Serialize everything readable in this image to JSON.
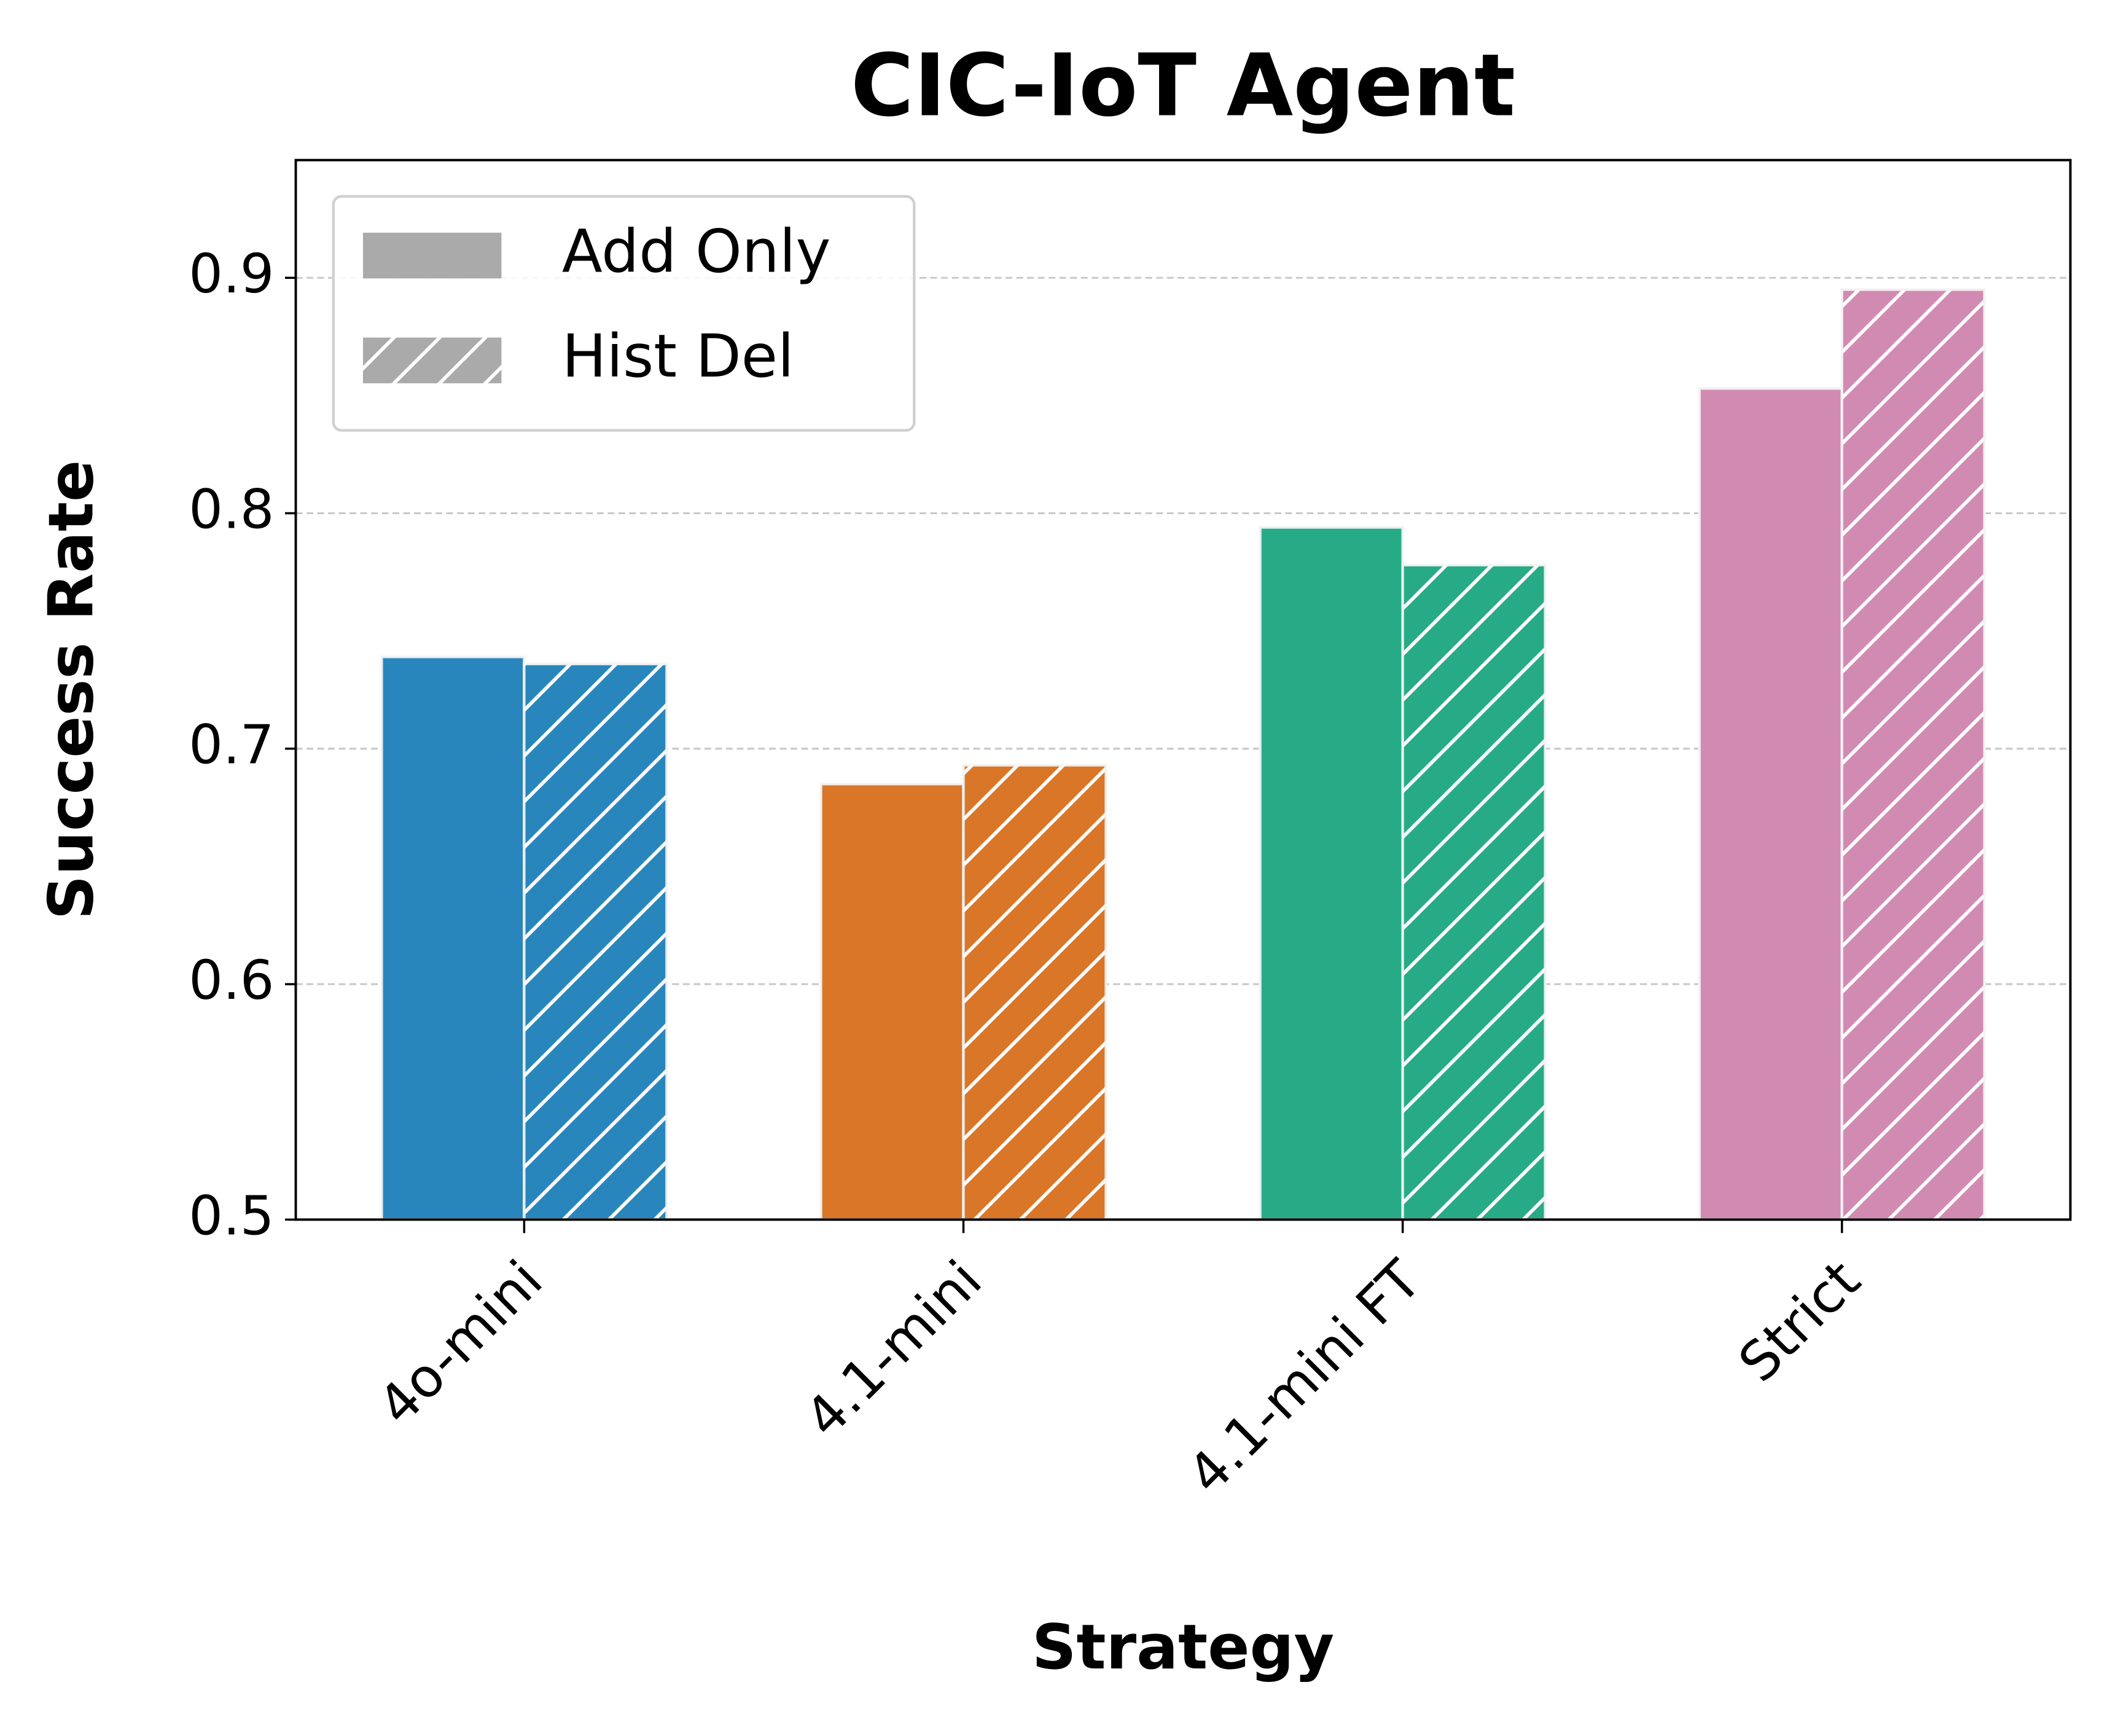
{
  "chart_data": {
    "type": "bar",
    "title": "CIC-IoT Agent",
    "x_label": "Strategy",
    "y_label": "Success Rate",
    "categories": [
      "4o-mini",
      "4.1-mini",
      "4.1-mini FT",
      "Strict"
    ],
    "category_colors": [
      "#2986bc",
      "#d97628",
      "#27ab87",
      "#d18bb2"
    ],
    "series": [
      {
        "name": "Add Only",
        "color": "#aaaaaa",
        "values": [
          0.739,
          0.685,
          0.794,
          0.853
        ]
      },
      {
        "name": "Hist Del",
        "color": "#aaaaaa",
        "hatch": "//",
        "values": [
          0.736,
          0.693,
          0.778,
          0.895
        ]
      }
    ],
    "ylim": [
      0.5,
      0.95
    ],
    "yticks": [
      0.5,
      0.6,
      0.7,
      0.8,
      0.9
    ],
    "grid": true,
    "legend": "upper left"
  }
}
